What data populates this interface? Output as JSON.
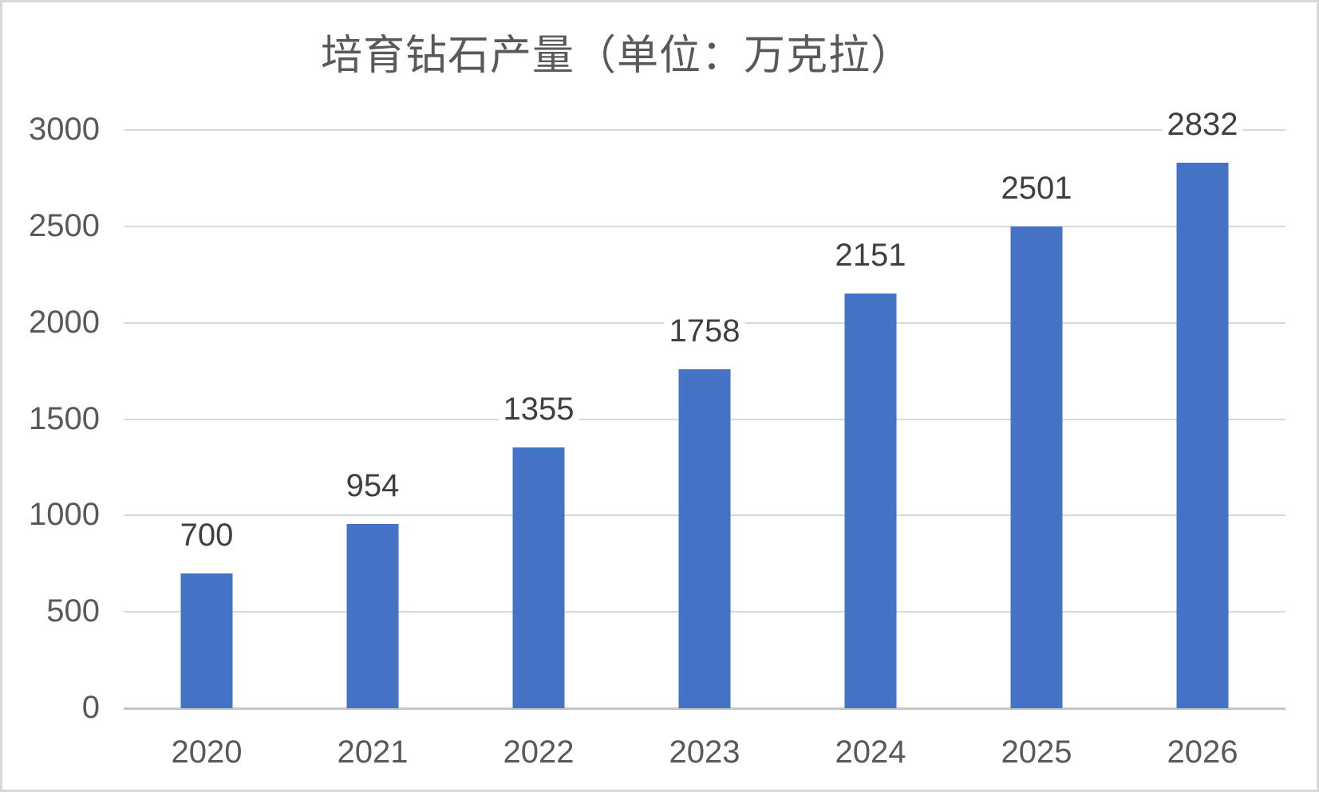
{
  "chart_data": {
    "type": "bar",
    "title": "培育钻石产量（单位：万克拉）",
    "categories": [
      "2020",
      "2021",
      "2022",
      "2023",
      "2024",
      "2025",
      "2026"
    ],
    "values": [
      700,
      954,
      1355,
      1758,
      2151,
      2501,
      2832
    ],
    "xlabel": "",
    "ylabel": "",
    "ylim": [
      0,
      3000
    ],
    "yticks": [
      0,
      500,
      1000,
      1500,
      2000,
      2500,
      3000
    ],
    "grid": true,
    "legend_position": "none",
    "data_labels": true,
    "colors": {
      "bar": "#4472C4",
      "gridline": "#D9D9D9",
      "axis_line": "#C7C5C5",
      "axis_label": "#595959",
      "data_label": "#3F3F3F",
      "title": "#595959",
      "background": "#FFFFFF",
      "border": "#D8D8D8"
    }
  }
}
